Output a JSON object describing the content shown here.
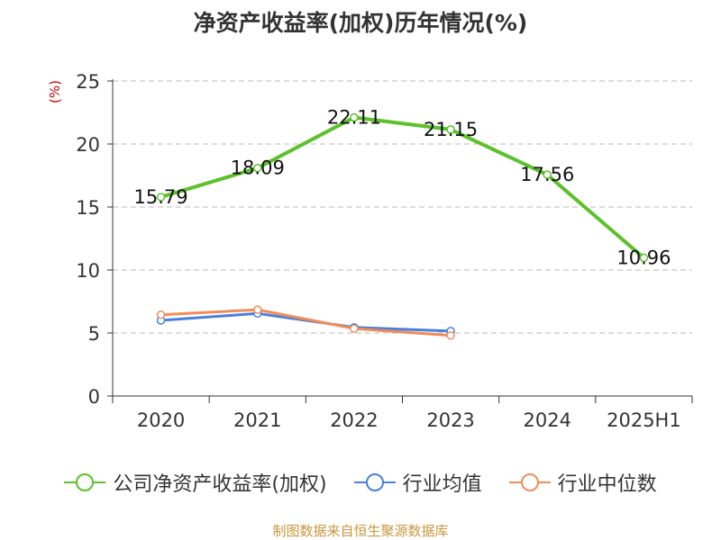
{
  "chart_data": {
    "type": "line",
    "title": "净资产收益率(加权)历年情况(%)",
    "unit_label": "(%)",
    "source": "制图数据来自恒生聚源数据库",
    "categories": [
      "2020",
      "2021",
      "2022",
      "2023",
      "2024",
      "2025H1"
    ],
    "y_ticks": [
      "0",
      "5",
      "10",
      "15",
      "20",
      "25"
    ],
    "ylim": [
      0,
      25
    ],
    "grid": "horizontal dashed",
    "legend_position": "bottom",
    "series": [
      {
        "name": "公司净资产收益率(加权)",
        "color": "#5cc12a",
        "values": [
          15.79,
          18.09,
          22.11,
          21.15,
          17.56,
          10.96
        ],
        "labels": [
          "15.79",
          "18.09",
          "22.11",
          "21.15",
          "17.56",
          "10.96"
        ]
      },
      {
        "name": "行业均值",
        "color": "#4a7fdc",
        "values": [
          6.0,
          6.55,
          5.45,
          5.15,
          null,
          null
        ],
        "labels": []
      },
      {
        "name": "行业中位数",
        "color": "#f08c5a",
        "values": [
          6.45,
          6.85,
          5.35,
          4.8,
          null,
          null
        ],
        "labels": []
      }
    ]
  }
}
